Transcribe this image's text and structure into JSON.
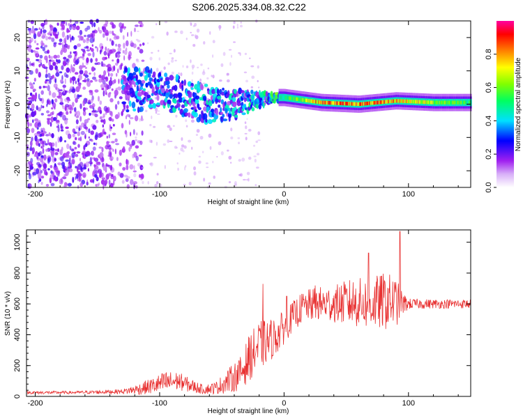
{
  "title": "S206.2025.334.08.32.C22",
  "chart_data": [
    {
      "type": "heatmap",
      "name": "spectrogram",
      "xlabel": "Height of straight line (km)",
      "ylabel": "Frequency (Hz)",
      "xlim": [
        -207,
        150
      ],
      "ylim": [
        -25,
        25
      ],
      "xticks": [
        -200,
        -100,
        0,
        100
      ],
      "yticks": [
        -20,
        -10,
        0,
        10,
        20
      ],
      "colorbar": {
        "label": "Normalized spectral amplitude",
        "range": [
          0,
          1
        ],
        "ticks": [
          "0.0",
          "0.2",
          "0.4",
          "0.6",
          "0.8"
        ],
        "colors": [
          "#ffffff",
          "#a020f0",
          "#0000ff",
          "#00e0ff",
          "#00ff00",
          "#ffff00",
          "#ff8000",
          "#ff0000",
          "#ff00a0"
        ]
      },
      "ridge": [
        {
          "x": -125,
          "freq": 5,
          "spread": 5,
          "amp": 0.25
        },
        {
          "x": -100,
          "freq": 4,
          "spread": 4,
          "amp": 0.3
        },
        {
          "x": -80,
          "freq": 2,
          "spread": 4,
          "amp": 0.3
        },
        {
          "x": -60,
          "freq": 0,
          "spread": 4,
          "amp": 0.3
        },
        {
          "x": -40,
          "freq": 0,
          "spread": 3,
          "amp": 0.3
        },
        {
          "x": -25,
          "freq": 1,
          "spread": 2,
          "amp": 0.35
        },
        {
          "x": -10,
          "freq": 2,
          "spread": 1,
          "amp": 0.45
        },
        {
          "x": 0,
          "freq": 2,
          "spread": 1,
          "amp": 0.55
        },
        {
          "x": 30,
          "freq": 0.5,
          "spread": 1,
          "amp": 0.9
        },
        {
          "x": 60,
          "freq": 0,
          "spread": 1,
          "amp": 0.9
        },
        {
          "x": 90,
          "freq": 1,
          "spread": 1,
          "amp": 0.85
        },
        {
          "x": 120,
          "freq": 0.5,
          "spread": 1,
          "amp": 0.7
        },
        {
          "x": 150,
          "freq": 0.5,
          "spread": 1,
          "amp": 0.6
        }
      ]
    },
    {
      "type": "line",
      "name": "snr",
      "xlabel": "Height of straight line (km)",
      "ylabel": "SNR (10 * v/v)",
      "xlim": [
        -207,
        150
      ],
      "ylim": [
        0,
        1080
      ],
      "xticks": [
        -200,
        -100,
        0,
        100
      ],
      "yticks": [
        0,
        200,
        400,
        600,
        800,
        1000
      ],
      "series": [
        {
          "name": "SNR",
          "color": "#e83030",
          "x": [
            -207,
            -190,
            -170,
            -150,
            -130,
            -115,
            -105,
            -95,
            -85,
            -75,
            -65,
            -55,
            -45,
            -35,
            -28,
            -20,
            -12,
            -5,
            5,
            15,
            25,
            40,
            55,
            70,
            82,
            90,
            95,
            100,
            120,
            150
          ],
          "y": [
            25,
            25,
            25,
            28,
            32,
            50,
            70,
            90,
            100,
            70,
            45,
            55,
            100,
            150,
            250,
            330,
            360,
            400,
            500,
            580,
            600,
            600,
            610,
            600,
            620,
            610,
            600,
            600,
            600,
            600
          ],
          "noise": [
            10,
            10,
            10,
            12,
            15,
            40,
            55,
            75,
            60,
            45,
            30,
            40,
            80,
            110,
            150,
            160,
            140,
            120,
            100,
            100,
            110,
            120,
            160,
            170,
            190,
            160,
            80,
            35,
            30,
            30
          ]
        }
      ],
      "spikes": [
        {
          "x": -17,
          "y": 730
        },
        {
          "x": 2,
          "y": 650
        },
        {
          "x": 68,
          "y": 930
        },
        {
          "x": 93,
          "y": 1070
        },
        {
          "x": 25,
          "y": 720
        }
      ]
    }
  ]
}
